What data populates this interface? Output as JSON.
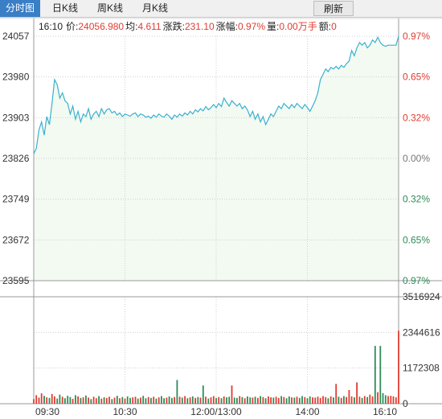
{
  "tabs": [
    {
      "label": "分时图",
      "active": true
    },
    {
      "label": "日K线",
      "active": false
    },
    {
      "label": "周K线",
      "active": false
    },
    {
      "label": "月K线",
      "active": false
    }
  ],
  "refresh_label": "刷新",
  "info": {
    "time": "16:10",
    "price_label": "价:",
    "price": "24056.980",
    "avg_label": "均:",
    "avg": "4.611",
    "change_label": "涨跌:",
    "change": "231.10",
    "pct_label": "涨幅:",
    "pct": "0.97%",
    "vol_label": "量:",
    "vol": "0.00万手",
    "amt_label": "额:",
    "amt": "0"
  },
  "colors": {
    "up": "#e03c31",
    "down": "#2e8b57",
    "line": "#3bb0cf",
    "fill": "#f2faf2",
    "grid": "#cfcfcf"
  },
  "chart_data": {
    "type": "line",
    "x_ticks": [
      "09:30",
      "10:30",
      "12:00/13:00",
      "14:00",
      "16:10"
    ],
    "price_ticks": [
      24057,
      23980,
      23903,
      23826,
      23749,
      23672,
      23595
    ],
    "pct_ticks": [
      "0.97%",
      "0.65%",
      "0.32%",
      "0.00%",
      "0.32%",
      "0.65%",
      "0.97%"
    ],
    "price_range": [
      23595,
      24057
    ],
    "volume_ticks": [
      3516924,
      2344616,
      1172308,
      0
    ],
    "volume_range": [
      0,
      3516924
    ],
    "price_series": [
      [
        0,
        23835
      ],
      [
        1,
        23845
      ],
      [
        2,
        23880
      ],
      [
        3,
        23895
      ],
      [
        4,
        23870
      ],
      [
        5,
        23905
      ],
      [
        6,
        23890
      ],
      [
        7,
        23930
      ],
      [
        8,
        23975
      ],
      [
        9,
        23965
      ],
      [
        10,
        23940
      ],
      [
        11,
        23950
      ],
      [
        12,
        23935
      ],
      [
        13,
        23930
      ],
      [
        14,
        23910
      ],
      [
        15,
        23925
      ],
      [
        16,
        23900
      ],
      [
        17,
        23915
      ],
      [
        18,
        23895
      ],
      [
        19,
        23910
      ],
      [
        20,
        23905
      ],
      [
        21,
        23920
      ],
      [
        22,
        23900
      ],
      [
        23,
        23910
      ],
      [
        24,
        23915
      ],
      [
        25,
        23905
      ],
      [
        26,
        23920
      ],
      [
        27,
        23910
      ],
      [
        28,
        23918
      ],
      [
        29,
        23920
      ],
      [
        30,
        23912
      ],
      [
        31,
        23915
      ],
      [
        32,
        23908
      ],
      [
        33,
        23912
      ],
      [
        34,
        23905
      ],
      [
        35,
        23910
      ],
      [
        36,
        23908
      ],
      [
        37,
        23906
      ],
      [
        38,
        23910
      ],
      [
        39,
        23912
      ],
      [
        40,
        23905
      ],
      [
        41,
        23910
      ],
      [
        42,
        23908
      ],
      [
        43,
        23904
      ],
      [
        44,
        23906
      ],
      [
        45,
        23902
      ],
      [
        46,
        23908
      ],
      [
        47,
        23904
      ],
      [
        48,
        23910
      ],
      [
        49,
        23906
      ],
      [
        50,
        23904
      ],
      [
        51,
        23910
      ],
      [
        52,
        23906
      ],
      [
        53,
        23900
      ],
      [
        54,
        23908
      ],
      [
        55,
        23904
      ],
      [
        56,
        23910
      ],
      [
        57,
        23906
      ],
      [
        58,
        23912
      ],
      [
        59,
        23908
      ],
      [
        60,
        23915
      ],
      [
        61,
        23910
      ],
      [
        62,
        23918
      ],
      [
        63,
        23914
      ],
      [
        64,
        23920
      ],
      [
        65,
        23916
      ],
      [
        66,
        23924
      ],
      [
        67,
        23918
      ],
      [
        68,
        23922
      ],
      [
        69,
        23928
      ],
      [
        70,
        23922
      ],
      [
        71,
        23930
      ],
      [
        72,
        23924
      ],
      [
        73,
        23940
      ],
      [
        74,
        23932
      ],
      [
        75,
        23925
      ],
      [
        76,
        23935
      ],
      [
        77,
        23930
      ],
      [
        78,
        23925
      ],
      [
        79,
        23930
      ],
      [
        80,
        23920
      ],
      [
        81,
        23925
      ],
      [
        82,
        23918
      ],
      [
        83,
        23905
      ],
      [
        84,
        23915
      ],
      [
        85,
        23900
      ],
      [
        86,
        23910
      ],
      [
        87,
        23895
      ],
      [
        88,
        23905
      ],
      [
        89,
        23890
      ],
      [
        90,
        23900
      ],
      [
        91,
        23910
      ],
      [
        92,
        23905
      ],
      [
        93,
        23915
      ],
      [
        94,
        23925
      ],
      [
        95,
        23920
      ],
      [
        96,
        23930
      ],
      [
        97,
        23925
      ],
      [
        98,
        23920
      ],
      [
        99,
        23928
      ],
      [
        100,
        23922
      ],
      [
        101,
        23930
      ],
      [
        102,
        23925
      ],
      [
        103,
        23920
      ],
      [
        104,
        23928
      ],
      [
        105,
        23922
      ],
      [
        106,
        23915
      ],
      [
        107,
        23925
      ],
      [
        108,
        23935
      ],
      [
        109,
        23950
      ],
      [
        110,
        23975
      ],
      [
        111,
        23985
      ],
      [
        112,
        23995
      ],
      [
        113,
        23990
      ],
      [
        114,
        23998
      ],
      [
        115,
        23995
      ],
      [
        116,
        24000
      ],
      [
        117,
        23995
      ],
      [
        118,
        24002
      ],
      [
        119,
        23998
      ],
      [
        120,
        24005
      ],
      [
        121,
        24010
      ],
      [
        122,
        24030
      ],
      [
        123,
        24020
      ],
      [
        124,
        24035
      ],
      [
        125,
        24045
      ],
      [
        126,
        24040
      ],
      [
        127,
        24045
      ],
      [
        128,
        24035
      ],
      [
        129,
        24040
      ],
      [
        130,
        24050
      ],
      [
        131,
        24045
      ],
      [
        132,
        24055
      ],
      [
        133,
        24045
      ],
      [
        134,
        24040
      ],
      [
        135,
        24038
      ],
      [
        136,
        24040
      ],
      [
        137,
        24040
      ],
      [
        138,
        24040
      ],
      [
        139,
        24040
      ],
      [
        140,
        24056.98
      ]
    ],
    "volume_series": [
      150000,
      280000,
      200000,
      340000,
      260000,
      210000,
      190000,
      320000,
      240000,
      170000,
      300000,
      230000,
      180000,
      260000,
      220000,
      160000,
      280000,
      240000,
      190000,
      210000,
      270000,
      200000,
      150000,
      230000,
      180000,
      250000,
      170000,
      210000,
      190000,
      230000,
      150000,
      200000,
      260000,
      180000,
      220000,
      170000,
      240000,
      190000,
      210000,
      230000,
      170000,
      200000,
      260000,
      180000,
      220000,
      190000,
      230000,
      170000,
      210000,
      250000,
      180000,
      200000,
      240000,
      190000,
      220000,
      780000,
      230000,
      200000,
      250000,
      180000,
      210000,
      240000,
      190000,
      220000,
      200000,
      600000,
      230000,
      170000,
      210000,
      250000,
      190000,
      220000,
      180000,
      240000,
      210000,
      230000,
      600000,
      200000,
      190000,
      250000,
      220000,
      180000,
      240000,
      210000,
      200000,
      230000,
      190000,
      250000,
      220000,
      180000,
      240000,
      210000,
      200000,
      230000,
      190000,
      250000,
      220000,
      180000,
      240000,
      210000,
      200000,
      230000,
      190000,
      250000,
      220000,
      180000,
      240000,
      210000,
      200000,
      230000,
      190000,
      250000,
      220000,
      180000,
      240000,
      210000,
      650000,
      230000,
      190000,
      250000,
      220000,
      450000,
      240000,
      210000,
      700000,
      230000,
      190000,
      250000,
      220000,
      300000,
      240000,
      1900000,
      380000,
      1900000,
      350000,
      280000,
      250000,
      260000,
      240000,
      210000,
      2400000
    ]
  }
}
